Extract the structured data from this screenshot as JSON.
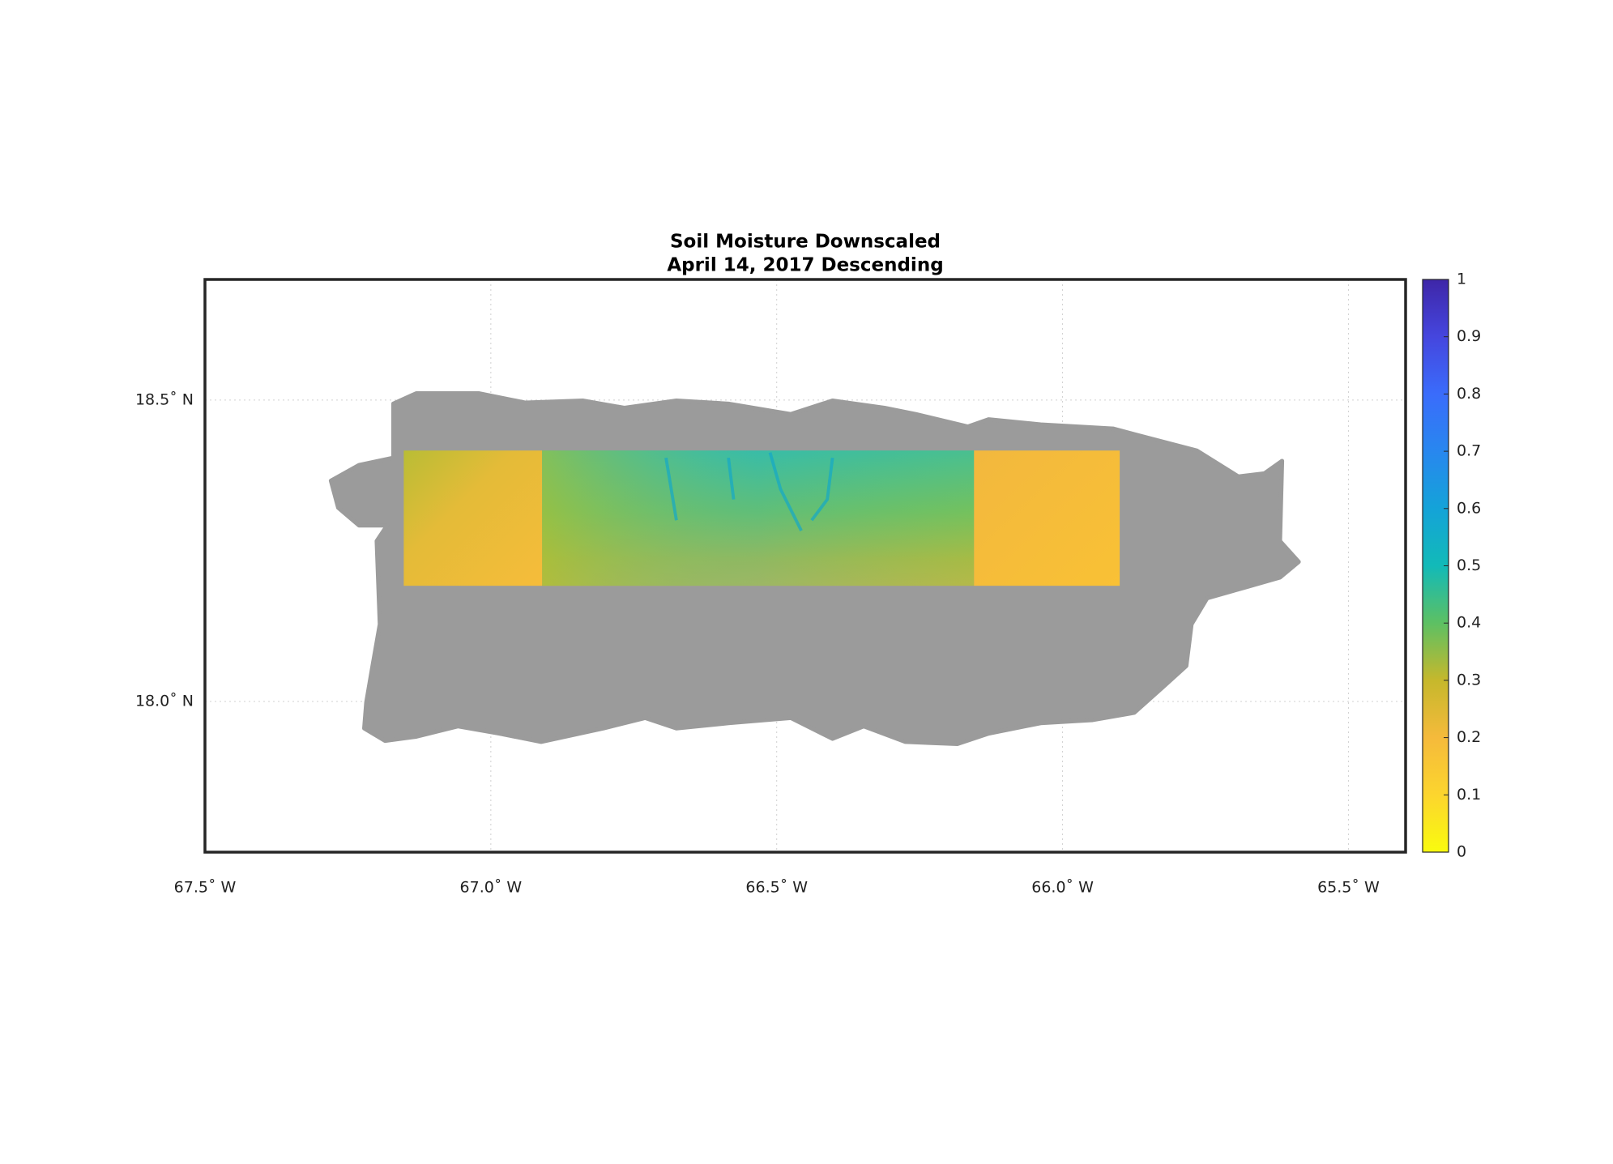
{
  "map": {
    "title": [
      "Soil Moisture Downscaled",
      "April 14, 2017 Descending"
    ],
    "xlim": [
      -67.5,
      -65.4
    ],
    "ylim": [
      17.75,
      18.7
    ],
    "xticks": [
      {
        "value": -67.5,
        "label": "67.5˚ W"
      },
      {
        "value": -67.0,
        "label": "67.0˚ W"
      },
      {
        "value": -66.5,
        "label": "66.5˚ W"
      },
      {
        "value": -66.0,
        "label": "66.0˚ W"
      },
      {
        "value": -65.5,
        "label": "65.5˚ W"
      }
    ],
    "yticks": [
      {
        "value": 18.0,
        "label": "18.0˚ N"
      },
      {
        "value": 18.5,
        "label": "18.5˚ N"
      }
    ],
    "grid": true,
    "colorbar": {
      "lim": [
        0,
        1
      ],
      "ticks": [
        0,
        0.1,
        0.2,
        0.3,
        0.4,
        0.5,
        0.6,
        0.7,
        0.8,
        0.9,
        1
      ]
    }
  }
}
